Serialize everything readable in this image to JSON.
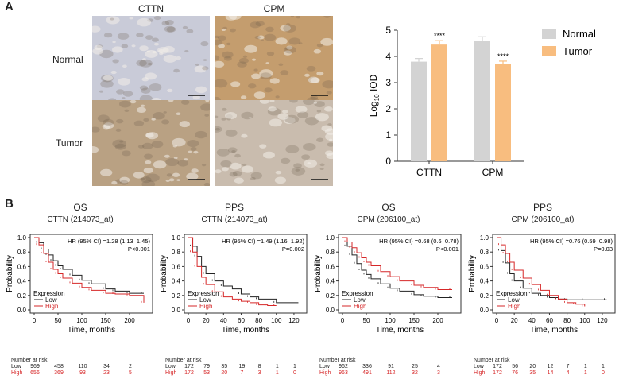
{
  "panel_a": {
    "label": "A",
    "ihc": {
      "columns": [
        "CTTN",
        "CPM"
      ],
      "rows": [
        "Normal",
        "Tumor"
      ],
      "stain_colors": {
        "CTTN_Normal": "#c9cbd8",
        "CTTN_Tumor": "#b9a183",
        "CPM_Normal": "#c49d6e",
        "CPM_Tumor": "#c9bcae"
      }
    }
  },
  "panel_b": {
    "label": "B"
  },
  "chart_data": [
    {
      "type": "bar",
      "title": "",
      "categories": [
        "CTTN",
        "CPM"
      ],
      "ylabel": "Log10 IOD",
      "ylim": [
        0,
        5
      ],
      "yticks": [
        "0",
        "1",
        "2",
        "3",
        "4",
        "5"
      ],
      "series": [
        {
          "name": "Normal",
          "color": "#d3d3d3",
          "values": [
            3.8,
            4.6
          ],
          "errors": [
            0.12,
            0.15
          ]
        },
        {
          "name": "Tumor",
          "color": "#f8bd7f",
          "values": [
            4.45,
            3.7
          ],
          "errors": [
            0.15,
            0.12
          ]
        }
      ],
      "annotations": [
        "****",
        "****"
      ],
      "legend": "top-right",
      "grid": false
    },
    {
      "type": "line",
      "title": "OS",
      "subtitle": "CTTN (214073_at)",
      "xlabel": "Time, months",
      "ylabel": "Probability",
      "xlim": [
        0,
        240
      ],
      "ylim": [
        0,
        1
      ],
      "xticks": [
        "0",
        "50",
        "100",
        "150",
        "200"
      ],
      "yticks": [
        "0.0",
        "0.2",
        "0.4",
        "0.6",
        "0.8",
        "1.0"
      ],
      "stat_text": [
        "HR (95% CI) =1.28 (1.13–1.45)",
        "P<0.001"
      ],
      "legend_title": "Expression",
      "series": [
        {
          "name": "Low",
          "color": "#222222",
          "x": [
            0,
            10,
            20,
            30,
            40,
            50,
            60,
            80,
            100,
            120,
            150,
            170,
            200,
            230
          ],
          "y": [
            1.0,
            0.93,
            0.84,
            0.76,
            0.68,
            0.61,
            0.56,
            0.48,
            0.41,
            0.36,
            0.29,
            0.26,
            0.23,
            0.23
          ]
        },
        {
          "name": "High",
          "color": "#d62728",
          "x": [
            0,
            10,
            20,
            30,
            40,
            50,
            60,
            80,
            100,
            120,
            150,
            170,
            200,
            230
          ],
          "y": [
            1.0,
            0.9,
            0.78,
            0.66,
            0.56,
            0.5,
            0.44,
            0.37,
            0.31,
            0.27,
            0.23,
            0.22,
            0.2,
            0.1
          ]
        }
      ],
      "risk_table": {
        "header": "Number at risk",
        "low_label": "Low",
        "low": [
          "969",
          "458",
          "110",
          "34",
          "2"
        ],
        "high_label": "High",
        "high": [
          "656",
          "369",
          "93",
          "23",
          "5"
        ]
      }
    },
    {
      "type": "line",
      "title": "PPS",
      "subtitle": "CTTN (214073_at)",
      "xlabel": "Time, months",
      "ylabel": "Probability",
      "xlim": [
        0,
        130
      ],
      "ylim": [
        0,
        1
      ],
      "xticks": [
        "0",
        "20",
        "40",
        "60",
        "80",
        "100",
        "120"
      ],
      "yticks": [
        "0.0",
        "0.2",
        "0.4",
        "0.6",
        "0.8",
        "1.0"
      ],
      "stat_text": [
        "HR (95% CI) =1.49 (1.16–1.92)",
        "P=0.002"
      ],
      "legend_title": "Expression",
      "series": [
        {
          "name": "Low",
          "color": "#222222",
          "x": [
            0,
            5,
            10,
            15,
            20,
            30,
            40,
            50,
            60,
            70,
            80,
            100,
            125
          ],
          "y": [
            1.0,
            0.88,
            0.74,
            0.6,
            0.5,
            0.4,
            0.33,
            0.29,
            0.22,
            0.18,
            0.15,
            0.1,
            0.1
          ]
        },
        {
          "name": "High",
          "color": "#d62728",
          "x": [
            0,
            5,
            10,
            15,
            20,
            30,
            40,
            50,
            60,
            70,
            80,
            90,
            100
          ],
          "y": [
            1.0,
            0.8,
            0.6,
            0.45,
            0.35,
            0.25,
            0.18,
            0.15,
            0.12,
            0.1,
            0.07,
            0.06,
            0.06
          ]
        }
      ],
      "risk_table": {
        "header": "Number at risk",
        "low_label": "Low",
        "low": [
          "172",
          "79",
          "35",
          "19",
          "8",
          "1",
          "1"
        ],
        "high_label": "High",
        "high": [
          "172",
          "53",
          "20",
          "7",
          "3",
          "1",
          "0"
        ]
      }
    },
    {
      "type": "line",
      "title": "OS",
      "subtitle": "CPM (206100_at)",
      "xlabel": "Time, months",
      "ylabel": "Probability",
      "xlim": [
        0,
        240
      ],
      "ylim": [
        0,
        1
      ],
      "xticks": [
        "0",
        "50",
        "100",
        "150",
        "200"
      ],
      "yticks": [
        "0.0",
        "0.2",
        "0.4",
        "0.6",
        "0.8",
        "1.0"
      ],
      "stat_text": [
        "HR (95% CI) =0.68 (0.6–0.78)",
        "P<0.001"
      ],
      "legend_title": "Expression",
      "series": [
        {
          "name": "Low",
          "color": "#222222",
          "x": [
            0,
            10,
            20,
            30,
            40,
            50,
            60,
            80,
            100,
            120,
            150,
            170,
            200,
            230
          ],
          "y": [
            1.0,
            0.88,
            0.76,
            0.64,
            0.55,
            0.49,
            0.43,
            0.36,
            0.3,
            0.26,
            0.21,
            0.19,
            0.17,
            0.17
          ]
        },
        {
          "name": "High",
          "color": "#d62728",
          "x": [
            0,
            10,
            20,
            30,
            40,
            50,
            60,
            80,
            100,
            120,
            150,
            170,
            200,
            230
          ],
          "y": [
            1.0,
            0.94,
            0.86,
            0.79,
            0.72,
            0.66,
            0.61,
            0.53,
            0.46,
            0.4,
            0.34,
            0.31,
            0.28,
            0.28
          ]
        }
      ],
      "risk_table": {
        "header": "Number at risk",
        "low_label": "Low",
        "low": [
          "962",
          "336",
          "91",
          "25",
          "4"
        ],
        "high_label": "High",
        "high": [
          "963",
          "491",
          "112",
          "32",
          "3"
        ]
      }
    },
    {
      "type": "line",
      "title": "PPS",
      "subtitle": "CPM (206100_at)",
      "xlabel": "Time, months",
      "ylabel": "Probability",
      "xlim": [
        0,
        130
      ],
      "ylim": [
        0,
        1
      ],
      "xticks": [
        "0",
        "20",
        "40",
        "60",
        "80",
        "100",
        "120"
      ],
      "yticks": [
        "0.0",
        "0.2",
        "0.4",
        "0.6",
        "0.8",
        "1.0"
      ],
      "stat_text": [
        "HR (95% CI) =0.76 (0.59–0.98)",
        "P=0.03"
      ],
      "legend_title": "Expression",
      "series": [
        {
          "name": "Low",
          "color": "#222222",
          "x": [
            0,
            5,
            10,
            15,
            20,
            30,
            40,
            50,
            60,
            70,
            80,
            100,
            125
          ],
          "y": [
            1.0,
            0.82,
            0.65,
            0.5,
            0.4,
            0.3,
            0.23,
            0.2,
            0.17,
            0.15,
            0.14,
            0.14,
            0.14
          ]
        },
        {
          "name": "High",
          "color": "#d62728",
          "x": [
            0,
            5,
            10,
            15,
            20,
            30,
            40,
            50,
            60,
            70,
            80,
            90,
            100
          ],
          "y": [
            1.0,
            0.9,
            0.78,
            0.66,
            0.55,
            0.44,
            0.35,
            0.27,
            0.2,
            0.15,
            0.1,
            0.08,
            0.05
          ]
        }
      ],
      "risk_table": {
        "header": "Number at risk",
        "low_label": "Low",
        "low": [
          "172",
          "56",
          "20",
          "12",
          "7",
          "1",
          "1"
        ],
        "high_label": "High",
        "high": [
          "172",
          "76",
          "35",
          "14",
          "4",
          "1",
          "0"
        ]
      }
    }
  ]
}
